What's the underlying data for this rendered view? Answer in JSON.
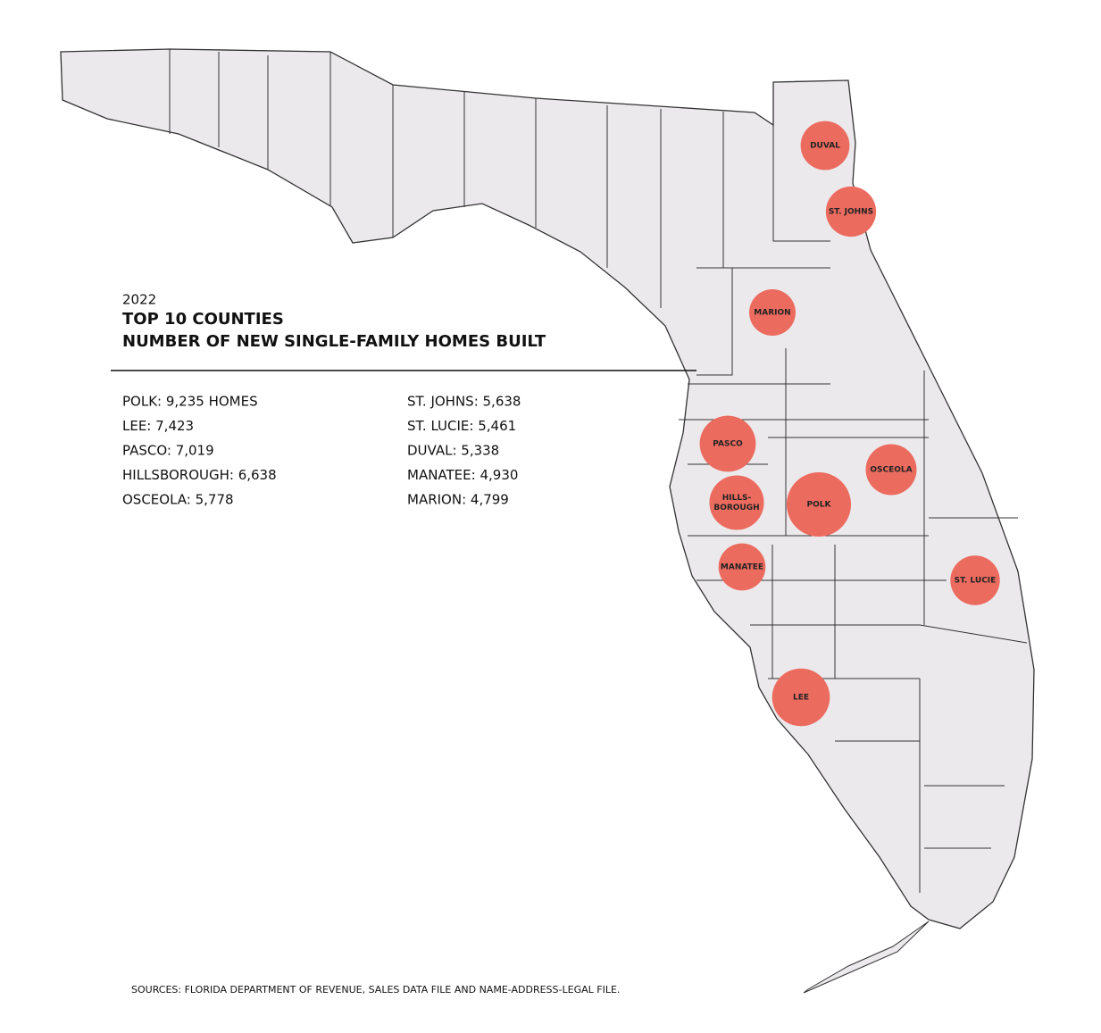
{
  "header": {
    "year": "2022",
    "title_line1": "TOP 10 COUNTIES",
    "title_line2": "NUMBER OF NEW SINGLE-FAMILY HOMES BUILT"
  },
  "counties": [
    {
      "label": "POLK: 9,235 HOMES",
      "bubble": [
        "POLK"
      ],
      "homes": 9235
    },
    {
      "label": "LEE: 7,423",
      "bubble": [
        "LEE"
      ],
      "homes": 7423
    },
    {
      "label": "PASCO: 7,019",
      "bubble": [
        "PASCO"
      ],
      "homes": 7019
    },
    {
      "label": "HILLSBOROUGH: 6,638",
      "bubble": [
        "HILLS-",
        "BOROUGH"
      ],
      "homes": 6638
    },
    {
      "label": "OSCEOLA: 5,778",
      "bubble": [
        "OSCEOLA"
      ],
      "homes": 5778
    },
    {
      "label": "ST. JOHNS: 5,638",
      "bubble": [
        "ST. JOHNS"
      ],
      "homes": 5638
    },
    {
      "label": "ST. LUCIE: 5,461",
      "bubble": [
        "ST. LUCIE"
      ],
      "homes": 5461
    },
    {
      "label": "DUVAL: 5,338",
      "bubble": [
        "DUVAL"
      ],
      "homes": 5338
    },
    {
      "label": "MANATEE: 4,930",
      "bubble": [
        "MANATEE"
      ],
      "homes": 4930
    },
    {
      "label": "MARION: 4,799",
      "bubble": [
        "MARION"
      ],
      "homes": 4799
    }
  ],
  "source": "SOURCES: FLORIDA DEPARTMENT OF REVENUE, SALES DATA FILE AND NAME-ADDRESS-LEGAL FILE."
}
